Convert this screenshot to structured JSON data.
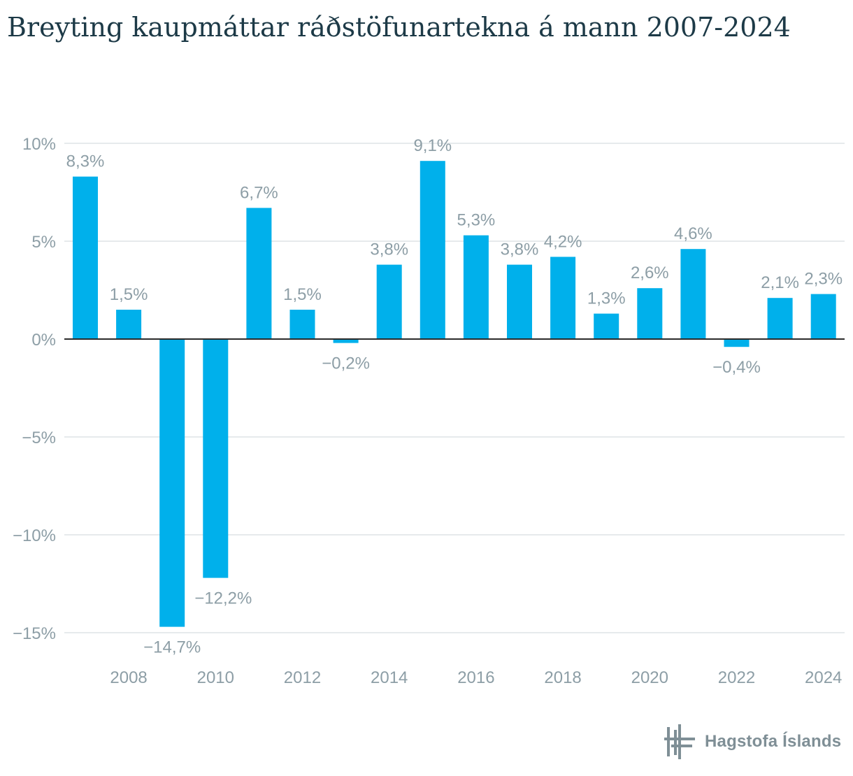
{
  "chart_title": "Breyting kaupmáttar ráðstöfunartekna á mann 2007-2024",
  "brand": {
    "name": "Hagstofa Íslands",
    "logo_icon": "hagstofa-logo-icon",
    "text_color": "#7f8f96"
  },
  "colors": {
    "bar": "#00b0eb",
    "gridline": "#dde3e6",
    "zero_line": "#2b2b2b",
    "label": "#8d9ea6",
    "title": "#1d3a47"
  },
  "chart_data": {
    "type": "bar",
    "title": "Breyting kaupmáttar ráðstöfunartekna á mann 2007-2024",
    "xlabel": "",
    "ylabel": "",
    "categories": [
      "2007",
      "2008",
      "2009",
      "2010",
      "2011",
      "2012",
      "2013",
      "2014",
      "2015",
      "2016",
      "2017",
      "2018",
      "2019",
      "2020",
      "2021",
      "2022",
      "2023",
      "2024"
    ],
    "values": [
      8.3,
      1.5,
      -14.7,
      -12.2,
      6.7,
      1.5,
      -0.2,
      3.8,
      9.1,
      5.3,
      3.8,
      4.2,
      1.3,
      2.6,
      4.6,
      -0.4,
      2.1,
      2.3
    ],
    "value_labels": [
      "8,3%",
      "1,5%",
      "−14,7%",
      "−12,2%",
      "6,7%",
      "1,5%",
      "−0,2%",
      "3,8%",
      "9,1%",
      "5,3%",
      "3,8%",
      "4,2%",
      "1,3%",
      "2,6%",
      "4,6%",
      "−0,4%",
      "2,1%",
      "2,3%"
    ],
    "ylim": [
      -15,
      10
    ],
    "yticks": [
      10,
      5,
      0,
      -5,
      -10,
      -15
    ],
    "ytick_labels": [
      "10%",
      "5%",
      "0%",
      "−5%",
      "−10%",
      "−15%"
    ],
    "xtick_labels": [
      "2008",
      "2010",
      "2012",
      "2014",
      "2016",
      "2018",
      "2020",
      "2022",
      "2024"
    ],
    "grid": true,
    "legend": "none"
  }
}
